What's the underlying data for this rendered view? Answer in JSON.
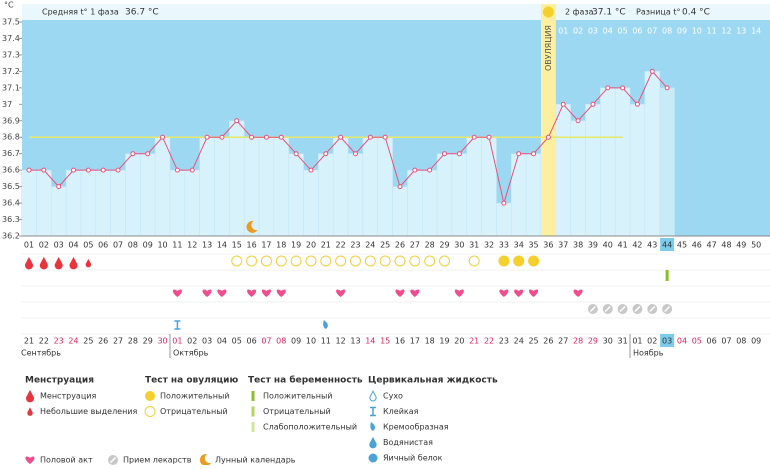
{
  "header": {
    "unit": "°C",
    "phase1_label": "Средняя t° 1 фаза",
    "phase1_value": "36.7 °C",
    "phase2_label": "2 фаза",
    "phase2_value": "37.1 °C",
    "diff_label": "Разница t°",
    "diff_value": "0.4 °C",
    "ovulation_label": "ОВУЛЯЦИЯ"
  },
  "chart_data": {
    "type": "line",
    "categories": [
      "01",
      "02",
      "03",
      "04",
      "05",
      "06",
      "07",
      "08",
      "09",
      "10",
      "11",
      "12",
      "13",
      "14",
      "15",
      "16",
      "17",
      "18",
      "19",
      "20",
      "21",
      "22",
      "23",
      "24",
      "25",
      "26",
      "27",
      "28",
      "29",
      "30",
      "31",
      "32",
      "33",
      "34",
      "35",
      "36",
      "37",
      "38",
      "39",
      "40",
      "41",
      "42",
      "43",
      "44",
      "45",
      "46",
      "47",
      "48",
      "49",
      "50"
    ],
    "values": [
      36.6,
      36.6,
      36.5,
      36.6,
      36.6,
      36.6,
      36.6,
      36.7,
      36.7,
      36.8,
      36.6,
      36.6,
      36.8,
      36.8,
      36.9,
      36.8,
      36.8,
      36.8,
      36.7,
      36.6,
      36.7,
      36.8,
      36.7,
      36.8,
      36.8,
      36.5,
      36.6,
      36.6,
      36.7,
      36.7,
      36.8,
      36.8,
      36.4,
      36.7,
      36.7,
      36.8,
      37.0,
      36.9,
      37.0,
      37.1,
      37.1,
      37.0,
      37.2,
      37.1,
      null,
      null,
      null,
      null,
      null,
      null
    ],
    "color": "#e8507a",
    "ylim": [
      36.2,
      37.5
    ],
    "yticks": [
      36.2,
      36.3,
      36.4,
      36.5,
      36.6,
      36.7,
      36.8,
      36.9,
      37,
      37.1,
      37.2,
      37.3,
      37.4,
      37.5
    ],
    "coverline": 36.8,
    "ovulation": "36",
    "today": "44",
    "phase2_labels": [
      "01",
      "02",
      "03",
      "04",
      "05",
      "06",
      "07",
      "08",
      "09",
      "10",
      "11",
      "12",
      "13",
      "14"
    ]
  },
  "events": {
    "menstruation": [
      "01",
      "02",
      "03",
      "04"
    ],
    "spotting": [
      "05"
    ],
    "ovulation_positive": [
      "33",
      "34",
      "35"
    ],
    "ovulation_negative": [
      "15",
      "16",
      "17",
      "18",
      "19",
      "20",
      "21",
      "22",
      "23",
      "24",
      "25",
      "26",
      "27",
      "28",
      "29",
      "31"
    ],
    "pregnancy_positive": [
      "44"
    ],
    "intercourse": [
      "11",
      "13",
      "14",
      "16",
      "17",
      "18",
      "22",
      "26",
      "27",
      "30",
      "33",
      "34",
      "35",
      "38"
    ],
    "medication": [
      "39",
      "40",
      "41",
      "42",
      "43",
      "44"
    ],
    "cervical_sticky": [
      "11"
    ],
    "cervical_creamy": [
      "21"
    ],
    "moon": [
      "16"
    ]
  },
  "calendar": {
    "dates": [
      "21",
      "22",
      "23",
      "24",
      "25",
      "26",
      "27",
      "28",
      "29",
      "30",
      "01",
      "02",
      "03",
      "04",
      "05",
      "06",
      "07",
      "08",
      "09",
      "10",
      "11",
      "12",
      "13",
      "14",
      "15",
      "16",
      "17",
      "18",
      "19",
      "20",
      "21",
      "22",
      "23",
      "24",
      "25",
      "26",
      "27",
      "28",
      "29",
      "30",
      "31",
      "01",
      "02",
      "03",
      "04",
      "05",
      "06",
      "07",
      "08",
      "09"
    ],
    "weekend": [
      2,
      3,
      9,
      10,
      16,
      17,
      23,
      24,
      30,
      31,
      37,
      38,
      44,
      45
    ],
    "today": 43,
    "months": [
      {
        "label": "Сентябрь",
        "start": 0
      },
      {
        "label": "Октябрь",
        "start": 10
      },
      {
        "label": "Ноябрь",
        "start": 41
      }
    ]
  },
  "legend": {
    "groups": [
      {
        "title": "Менструация",
        "items": [
          "Менструация",
          "Небольшие выделения"
        ]
      },
      {
        "title": "Тест на овуляцию",
        "items": [
          "Положительный",
          "Отрицательный"
        ]
      },
      {
        "title": "Тест на беременность",
        "items": [
          "Положительный",
          "Отрицательный",
          "Слабоположительный"
        ]
      },
      {
        "title": "Цервикальная жидкость",
        "items": [
          "Сухо",
          "Клейкая",
          "Кремообразная",
          "Водянистая",
          "Яичный белок"
        ]
      }
    ],
    "extra": [
      "Половой акт",
      "Прием лекарств",
      "Лунный календарь"
    ]
  }
}
